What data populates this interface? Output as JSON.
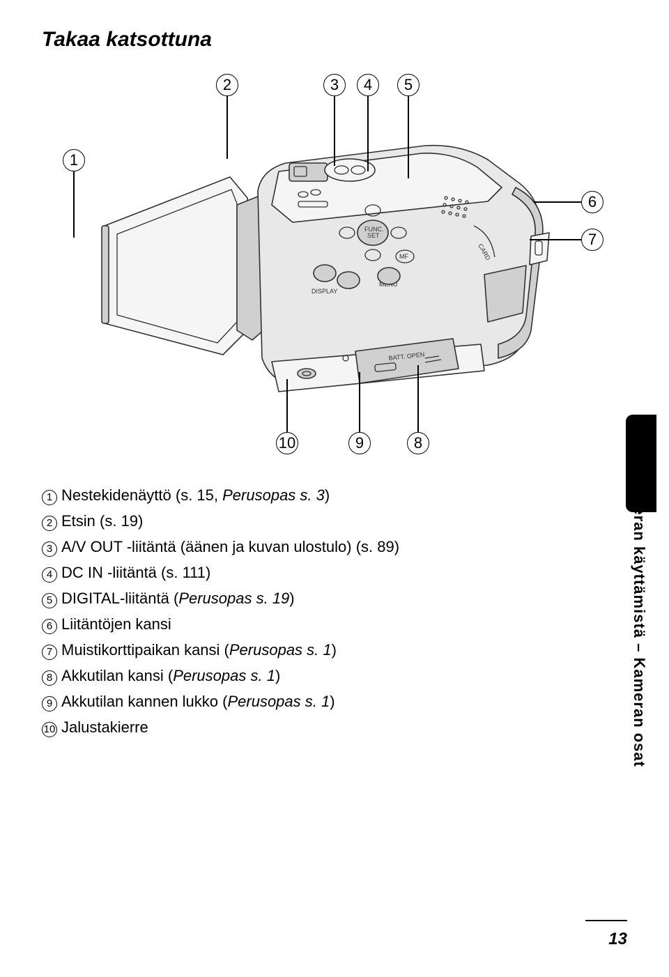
{
  "title": "Takaa katsottuna",
  "callouts": {
    "c1": "1",
    "c2": "2",
    "c3": "3",
    "c4": "4",
    "c5": "5",
    "c6": "6",
    "c7": "7",
    "c8": "8",
    "c9": "9",
    "c10": "10"
  },
  "legend": [
    {
      "num": "1",
      "text": "Nestekidenäyttö (s. 15, ",
      "italic": "Perusopas s. 3",
      "after": ")"
    },
    {
      "num": "2",
      "text": "Etsin (s. 19)"
    },
    {
      "num": "3",
      "text": "A/V OUT -liitäntä (äänen ja kuvan ulostulo) (s. 89)"
    },
    {
      "num": "4",
      "text": "DC IN -liitäntä (s. 111)"
    },
    {
      "num": "5",
      "text": "DIGITAL-liitäntä (",
      "italic": "Perusopas s. 19",
      "after": ")"
    },
    {
      "num": "6",
      "text": "Liitäntöjen kansi"
    },
    {
      "num": "7",
      "text": "Muistikorttipaikan kansi (",
      "italic": "Perusopas s. 1",
      "after": ")"
    },
    {
      "num": "8",
      "text": "Akkutilan kansi (",
      "italic": "Perusopas s. 1",
      "after": ")"
    },
    {
      "num": "9",
      "text": "Akkutilan kannen lukko (",
      "italic": "Perusopas s. 1",
      "after": ")"
    },
    {
      "num": "10",
      "text": "Jalustakierre"
    }
  ],
  "vertical_label": "Ennen kameran käyttämistä – Kameran osat",
  "page_number": "13",
  "colors": {
    "bg": "#ffffff",
    "text": "#000000",
    "camera_body": "#e8e8e8",
    "camera_light": "#f5f5f5",
    "camera_dark": "#d0d0d0",
    "camera_line": "#303030"
  }
}
